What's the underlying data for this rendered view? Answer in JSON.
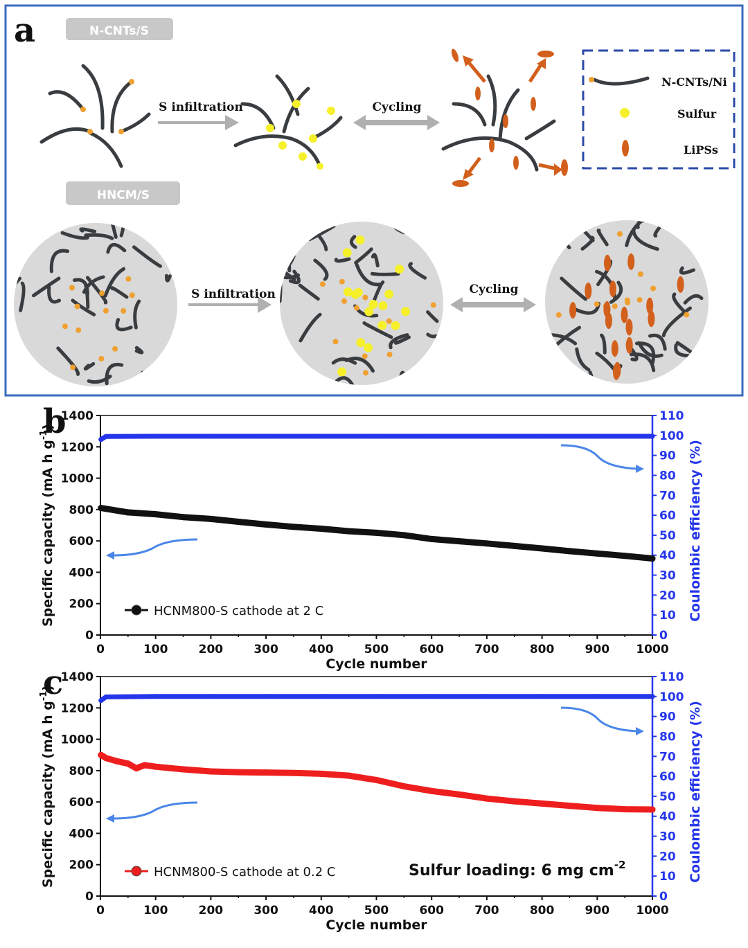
{
  "panel_a": {
    "letter": "a",
    "top_tag": "N-CNTs/S",
    "bottom_tag": "HNCM/S",
    "arrow1_label": "S infiltration",
    "arrow2_label": "Cycling",
    "arrow3_label": "S infiltration",
    "arrow4_label": "Cycling",
    "legend_fiber": "N-CNTs/Ni",
    "legend_sulfur": "Sulfur",
    "legend_lips": "LiPSs",
    "colors": {
      "fiber": "#3a3d40",
      "ni_tip": "#f0a030",
      "sulfur": "#f6f02a",
      "lips": "#d2601c",
      "frame": "#3a6bbd",
      "tag_bg": "#c8c8c8",
      "circle_bg": "#d9d9d9",
      "arrow": "#b0b0b0"
    },
    "icons": [
      "fiber-icon",
      "sulfur-dot-icon",
      "lips-ellipse-icon"
    ]
  },
  "chart_data": [
    {
      "panel_letter": "b",
      "type": "line",
      "xlabel": "Cycle number",
      "ylabel": "Specific capacity (mA h g-1)",
      "ylabel_parts": {
        "main": "Specific capacity (mA h g",
        "sup": "-1",
        "end": ")"
      },
      "y2label": "Coulombic efficiency (%)",
      "xlim": [
        0,
        1000
      ],
      "ylim": [
        0,
        1400
      ],
      "y2lim": [
        0,
        110
      ],
      "xticks": [
        0,
        100,
        200,
        300,
        400,
        500,
        600,
        700,
        800,
        900,
        1000
      ],
      "yticks": [
        0,
        200,
        400,
        600,
        800,
        1000,
        1200,
        1400
      ],
      "y2ticks": [
        0,
        10,
        20,
        30,
        40,
        50,
        60,
        70,
        80,
        90,
        100,
        110
      ],
      "legend": "HCNM800-S cathode at 2 C",
      "legend_position": "bottom-left",
      "annotation": "",
      "series": [
        {
          "name": "HCNM800-S cathode at 2 C",
          "axis": "left",
          "color": "#111111",
          "x": [
            1,
            50,
            100,
            150,
            200,
            250,
            300,
            350,
            400,
            450,
            500,
            550,
            600,
            650,
            700,
            750,
            800,
            850,
            900,
            950,
            1000
          ],
          "y": [
            810,
            782,
            770,
            752,
            740,
            722,
            705,
            690,
            678,
            662,
            652,
            637,
            612,
            598,
            584,
            568,
            552,
            535,
            520,
            505,
            488
          ]
        },
        {
          "name": "",
          "axis": "right",
          "color": "#2536ea",
          "x": [
            1,
            10,
            100,
            200,
            300,
            400,
            500,
            600,
            700,
            800,
            900,
            1000
          ],
          "y": [
            98,
            99.5,
            99.6,
            99.6,
            99.6,
            99.6,
            99.6,
            99.6,
            99.6,
            99.6,
            99.6,
            99.6
          ]
        }
      ]
    },
    {
      "panel_letter": "c",
      "type": "line",
      "xlabel": "Cycle number",
      "ylabel": "Specific capacity (mA h g-1)",
      "ylabel_parts": {
        "main": "Specific capacity (mA h g",
        "sup": "-1",
        "end": ")"
      },
      "y2label": "Coulombic efficiency (%)",
      "xlim": [
        0,
        1000
      ],
      "ylim": [
        0,
        1400
      ],
      "y2lim": [
        0,
        110
      ],
      "xticks": [
        0,
        100,
        200,
        300,
        400,
        500,
        600,
        700,
        800,
        900,
        1000
      ],
      "yticks": [
        0,
        200,
        400,
        600,
        800,
        1000,
        1200,
        1400
      ],
      "y2ticks": [
        0,
        10,
        20,
        30,
        40,
        50,
        60,
        70,
        80,
        90,
        100,
        110
      ],
      "legend": "HCNM800-S cathode at 0.2 C",
      "legend_position": "bottom-left",
      "annotation": "Sulfur loading: 6 mg cm",
      "annotation_sup": "-2",
      "series": [
        {
          "name": "HCNM800-S cathode at 0.2 C",
          "axis": "left",
          "color": "#ef1e1e",
          "x": [
            1,
            10,
            30,
            50,
            65,
            80,
            100,
            150,
            200,
            250,
            300,
            350,
            400,
            450,
            500,
            550,
            600,
            650,
            700,
            750,
            800,
            850,
            900,
            950,
            1000
          ],
          "y": [
            900,
            880,
            860,
            845,
            815,
            835,
            825,
            808,
            795,
            790,
            788,
            785,
            780,
            768,
            740,
            700,
            670,
            648,
            622,
            604,
            590,
            576,
            562,
            554,
            552
          ]
        },
        {
          "name": "",
          "axis": "right",
          "color": "#2536ea",
          "x": [
            1,
            10,
            100,
            200,
            300,
            400,
            500,
            600,
            700,
            800,
            900,
            1000
          ],
          "y": [
            98,
            99.8,
            100,
            100,
            100,
            100,
            100,
            100,
            100,
            100,
            100,
            100
          ]
        }
      ]
    }
  ]
}
